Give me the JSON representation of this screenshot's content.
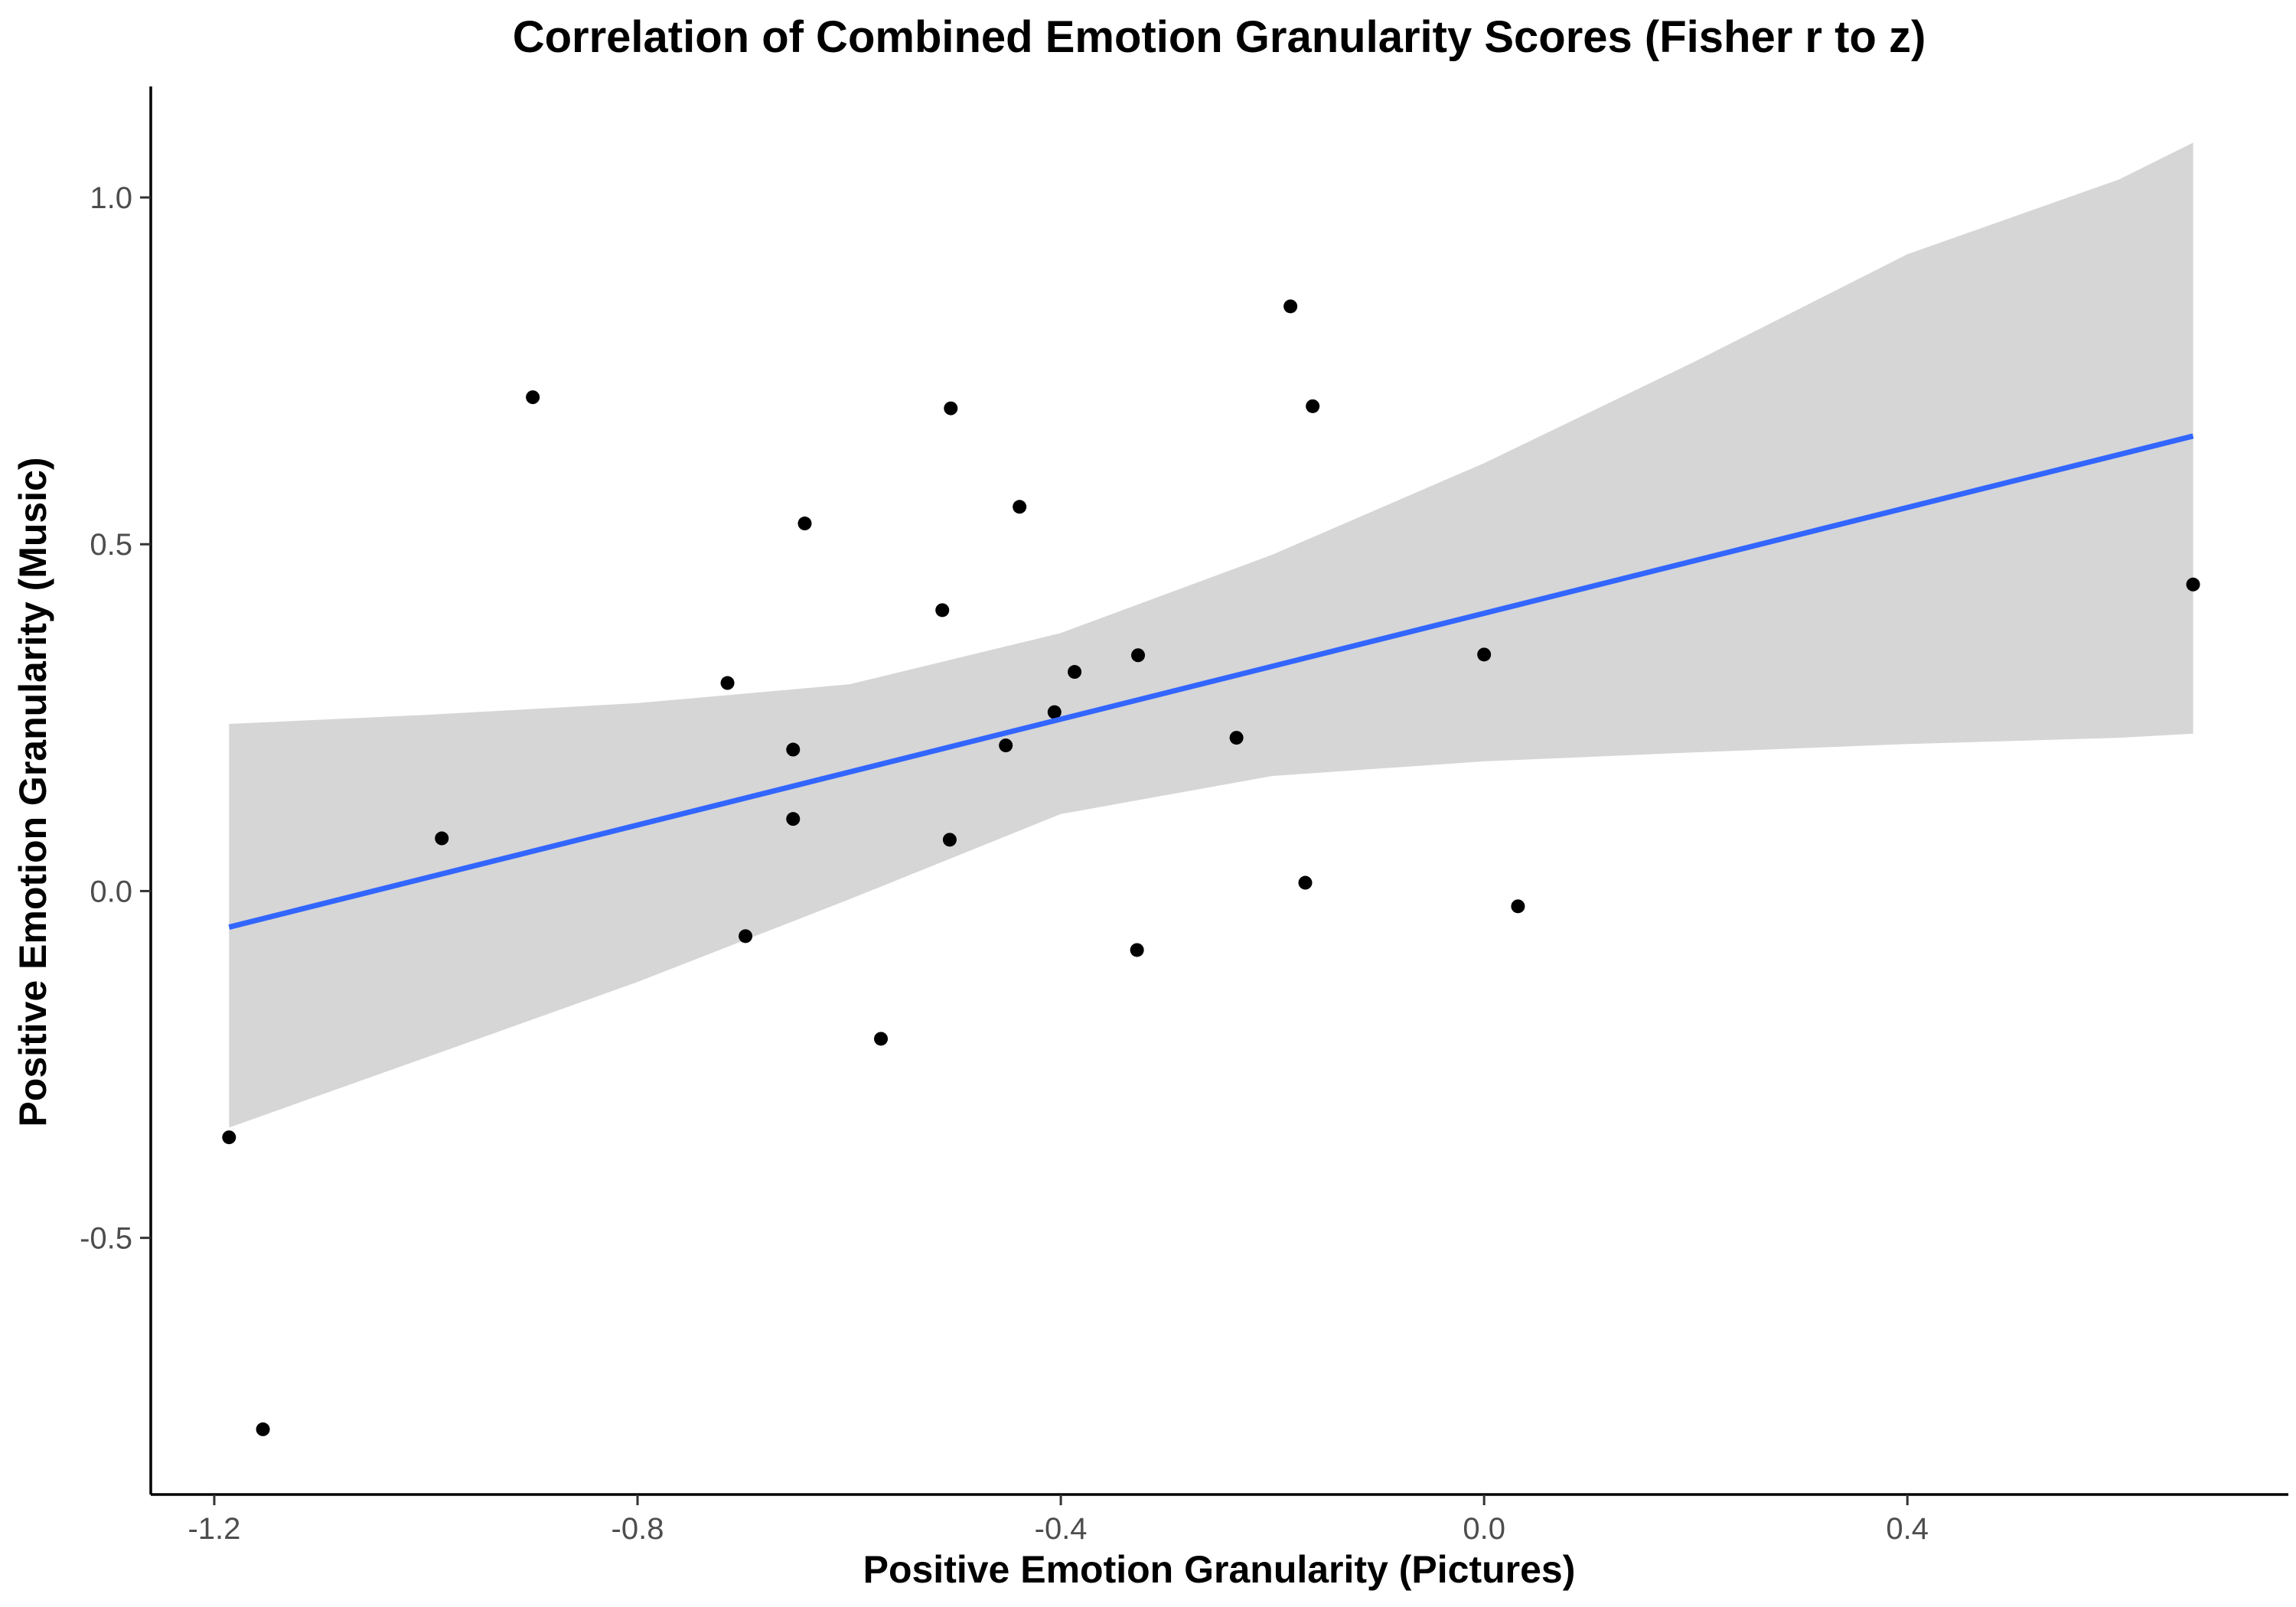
{
  "chart_data": {
    "type": "scatter",
    "title": "Correlation of Combined Emotion Granularity Scores (Fisher r to z)",
    "xlabel": "Positive Emotion Granularity (Pictures)",
    "ylabel": "Positive Emotion Granularity (Music)",
    "xlim": [
      -1.26,
      0.76
    ],
    "ylim": [
      -0.87,
      1.16
    ],
    "x_ticks": [
      -1.2,
      -0.8,
      -0.4,
      0.0,
      0.4
    ],
    "x_tick_labels": [
      "-1.2",
      "-0.8",
      "-0.4",
      "0.0",
      "0.4"
    ],
    "y_ticks": [
      -0.5,
      0.0,
      0.5,
      1.0
    ],
    "y_tick_labels": [
      "-0.5",
      "0.0",
      "0.5",
      "1.0"
    ],
    "grid": false,
    "points": [
      {
        "x": -1.186,
        "y": -0.355
      },
      {
        "x": -1.154,
        "y": -0.776
      },
      {
        "x": -0.985,
        "y": 0.076
      },
      {
        "x": -0.899,
        "y": 0.712
      },
      {
        "x": -0.715,
        "y": 0.3
      },
      {
        "x": -0.698,
        "y": -0.065
      },
      {
        "x": -0.653,
        "y": 0.204
      },
      {
        "x": -0.653,
        "y": 0.104
      },
      {
        "x": -0.642,
        "y": 0.53
      },
      {
        "x": -0.57,
        "y": -0.213
      },
      {
        "x": -0.512,
        "y": 0.405
      },
      {
        "x": -0.504,
        "y": 0.696
      },
      {
        "x": -0.505,
        "y": 0.074
      },
      {
        "x": -0.439,
        "y": 0.554
      },
      {
        "x": -0.452,
        "y": 0.21
      },
      {
        "x": -0.406,
        "y": 0.258
      },
      {
        "x": -0.387,
        "y": 0.316
      },
      {
        "x": -0.327,
        "y": 0.34
      },
      {
        "x": -0.328,
        "y": -0.085
      },
      {
        "x": -0.234,
        "y": 0.221
      },
      {
        "x": -0.183,
        "y": 0.843
      },
      {
        "x": -0.169,
        "y": 0.012
      },
      {
        "x": -0.162,
        "y": 0.699
      },
      {
        "x": 0.0,
        "y": 0.341
      },
      {
        "x": 0.032,
        "y": -0.022
      },
      {
        "x": 0.67,
        "y": 0.442
      }
    ],
    "regression": {
      "x_range": [
        -1.186,
        0.67
      ],
      "y_start": -0.052,
      "y_end": 0.656,
      "color": "#3366ff"
    },
    "confidence_band": {
      "fill": "#d6d6d6",
      "x": [
        -1.186,
        -1.0,
        -0.8,
        -0.6,
        -0.4,
        -0.2,
        0.0,
        0.2,
        0.4,
        0.6,
        0.67
      ],
      "upper": [
        0.241,
        0.254,
        0.271,
        0.298,
        0.372,
        0.485,
        0.617,
        0.764,
        0.918,
        1.026,
        1.079
      ],
      "lower": [
        -0.341,
        -0.24,
        -0.131,
        -0.012,
        0.111,
        0.166,
        0.187,
        0.2,
        0.212,
        0.221,
        0.227
      ]
    },
    "point_color": "#000000"
  }
}
